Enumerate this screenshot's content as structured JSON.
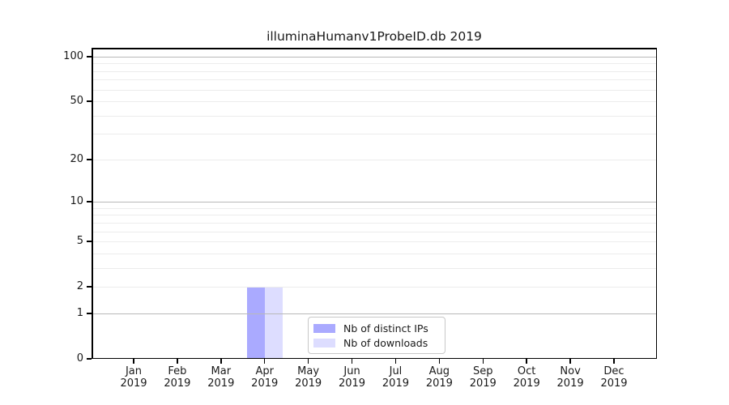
{
  "chart_data": {
    "type": "bar",
    "title": "illuminaHumanv1ProbeID.db 2019",
    "categories": [
      "Jan",
      "Feb",
      "Mar",
      "Apr",
      "May",
      "Jun",
      "Jul",
      "Aug",
      "Sep",
      "Oct",
      "Nov",
      "Dec"
    ],
    "year": "2019",
    "series": [
      {
        "name": "Nb of distinct IPs",
        "color": "#aaaaff",
        "values": [
          0,
          0,
          0,
          2,
          0,
          0,
          0,
          0,
          0,
          0,
          0,
          0
        ]
      },
      {
        "name": "Nb of downloads",
        "color": "#ddddff",
        "values": [
          0,
          0,
          0,
          2,
          0,
          0,
          0,
          0,
          0,
          0,
          0,
          0
        ]
      }
    ],
    "xlabel": "",
    "ylabel": "",
    "yscale": "log1p",
    "ylim": [
      0,
      115
    ],
    "yticks": [
      0,
      1,
      2,
      5,
      10,
      20,
      50,
      100
    ],
    "major_gridlines": [
      1,
      10,
      100
    ],
    "minor_gridlines": [
      2,
      3,
      4,
      5,
      6,
      7,
      8,
      9,
      20,
      30,
      40,
      50,
      60,
      70,
      80,
      90
    ],
    "grid": "horizontal",
    "legend_position": "inside-bottom-center"
  },
  "colors": {
    "background": "#ffffff",
    "axis": "#000000",
    "text": "#1a1a1a",
    "major_grid": "#b9b9b9",
    "minor_grid": "#ececec",
    "legend_border": "#c8c8c8",
    "bar_distinct_ips": "#aaaaff",
    "bar_downloads": "#ddddff"
  }
}
